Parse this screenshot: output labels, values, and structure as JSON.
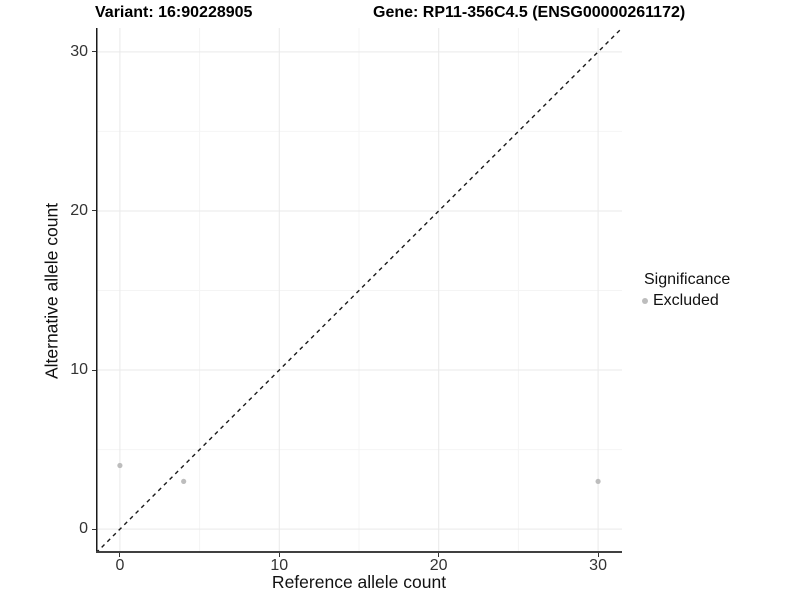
{
  "chart_data": {
    "type": "scatter",
    "title_left": "Variant: 16:90228905",
    "title_right": "Gene: RP11-356C4.5 (ENSG00000261172)",
    "xlabel": "Reference allele count",
    "ylabel": "Alternative allele count",
    "xlim": [
      -1.5,
      31.5
    ],
    "ylim": [
      -1.5,
      31.5
    ],
    "x_major_ticks": [
      0,
      10,
      20,
      30
    ],
    "y_major_ticks": [
      0,
      10,
      20,
      30
    ],
    "x_minor_ticks": [
      5,
      15,
      25
    ],
    "y_minor_ticks": [
      5,
      15,
      25
    ],
    "grid": true,
    "series": [
      {
        "name": "Excluded",
        "color": "#bdbdbd",
        "points": [
          {
            "x": 0,
            "y": 4
          },
          {
            "x": 4,
            "y": 3
          },
          {
            "x": 30,
            "y": 3
          }
        ]
      }
    ],
    "identity_line": {
      "equation": "y = x",
      "style": "dashed",
      "color": "#1a1a1a"
    },
    "legend": {
      "title": "Significance",
      "position": "right",
      "items": [
        {
          "label": "Excluded",
          "color": "#bdbdbd",
          "marker": "circle"
        }
      ]
    },
    "colors": {
      "background": "#ffffff",
      "grid_major": "#e9e9e9",
      "grid_minor": "#f4f4f4",
      "axis_line_y": "#1a1a1a",
      "axis_line_x": "#404040",
      "tick_mark": "#333333",
      "title_text": "#000000",
      "axis_text": "#333333"
    }
  }
}
